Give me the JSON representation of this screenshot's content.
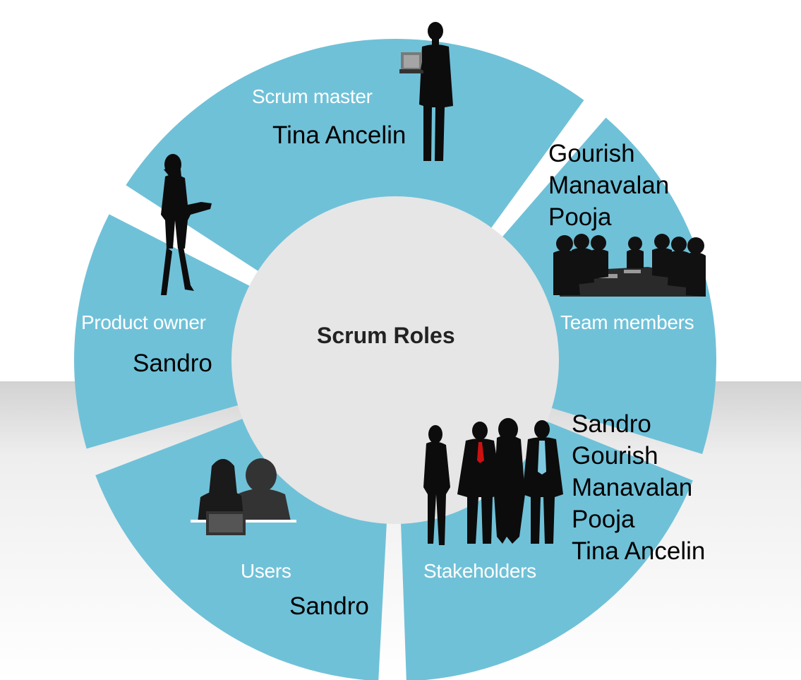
{
  "colors": {
    "wheel": "#6fc1d8",
    "hub": "#e6e6e6",
    "floor": "#ececec",
    "silhouette": "#0c0c0c",
    "tie": "#cc1111"
  },
  "diagram": {
    "center_label": "Scrum Roles",
    "segments": [
      {
        "role": "Scrum master",
        "icon": "person-with-laptop-icon",
        "people": [
          "Tina Ancelin"
        ]
      },
      {
        "role": "Team members",
        "icon": "meeting-group-icon",
        "people": [
          "Gourish",
          "Manavalan",
          "Pooja"
        ]
      },
      {
        "role": "Stakeholders",
        "icon": "business-group-icon",
        "people": [
          "Sandro",
          "Gourish",
          "Manavalan",
          "Pooja",
          "Tina Ancelin"
        ]
      },
      {
        "role": "Users",
        "icon": "users-at-laptop-icon",
        "people": [
          "Sandro"
        ]
      },
      {
        "role": "Product owner",
        "icon": "presenting-woman-icon",
        "people": [
          "Sandro"
        ]
      }
    ]
  }
}
